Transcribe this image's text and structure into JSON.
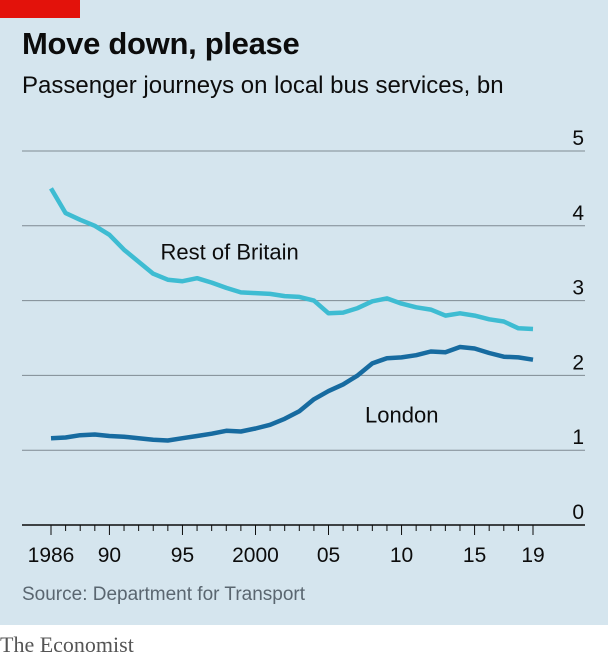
{
  "header": {
    "title": "Move down, please",
    "subtitle": "Passenger journeys on local bus services, bn"
  },
  "footer": {
    "source": "Source: Department for Transport",
    "brand": "The Economist"
  },
  "colors": {
    "background": "#d5e5ee",
    "accent": "#e3120b",
    "rest_of_britain": "#3ebcd2",
    "london": "#176ba0",
    "grid": "#7f8a92",
    "axis": "#0c0c0c"
  },
  "chart_data": {
    "type": "line",
    "title": "Move down, please",
    "subtitle": "Passenger journeys on local bus services, bn",
    "xlabel": "",
    "ylabel": "",
    "xlim": [
      1986,
      2019
    ],
    "ylim": [
      0,
      5
    ],
    "yticks": [
      0,
      1,
      2,
      3,
      4,
      5
    ],
    "ytick_labels": [
      "0",
      "1",
      "2",
      "3",
      "4",
      "5"
    ],
    "ytick_position": "right",
    "xticks": [
      1986,
      1990,
      1995,
      2000,
      2005,
      2010,
      2015,
      2019
    ],
    "xtick_labels": [
      "1986",
      "90",
      "95",
      "2000",
      "05",
      "10",
      "15",
      "19"
    ],
    "grid": "horizontal",
    "legend": "direct labels",
    "x": [
      1986,
      1987,
      1988,
      1989,
      1990,
      1991,
      1992,
      1993,
      1994,
      1995,
      1996,
      1997,
      1998,
      1999,
      2000,
      2001,
      2002,
      2003,
      2004,
      2005,
      2006,
      2007,
      2008,
      2009,
      2010,
      2011,
      2012,
      2013,
      2014,
      2015,
      2016,
      2017,
      2018,
      2019
    ],
    "series": [
      {
        "name": "Rest of Britain",
        "label_x": 1993.5,
        "label_y": 3.55,
        "values": [
          4.5,
          4.17,
          4.08,
          4.0,
          3.88,
          3.68,
          3.52,
          3.36,
          3.28,
          3.26,
          3.3,
          3.24,
          3.17,
          3.11,
          3.1,
          3.09,
          3.06,
          3.05,
          3.0,
          2.83,
          2.84,
          2.9,
          2.99,
          3.03,
          2.96,
          2.91,
          2.88,
          2.8,
          2.83,
          2.8,
          2.75,
          2.72,
          2.63,
          2.62
        ]
      },
      {
        "name": "London",
        "label_x": 2007.5,
        "label_y": 1.37,
        "values": [
          1.16,
          1.17,
          1.2,
          1.21,
          1.19,
          1.18,
          1.16,
          1.14,
          1.13,
          1.16,
          1.19,
          1.22,
          1.26,
          1.25,
          1.29,
          1.34,
          1.42,
          1.52,
          1.68,
          1.79,
          1.88,
          2.0,
          2.16,
          2.23,
          2.24,
          2.27,
          2.32,
          2.31,
          2.38,
          2.36,
          2.3,
          2.25,
          2.24,
          2.21
        ]
      }
    ]
  }
}
